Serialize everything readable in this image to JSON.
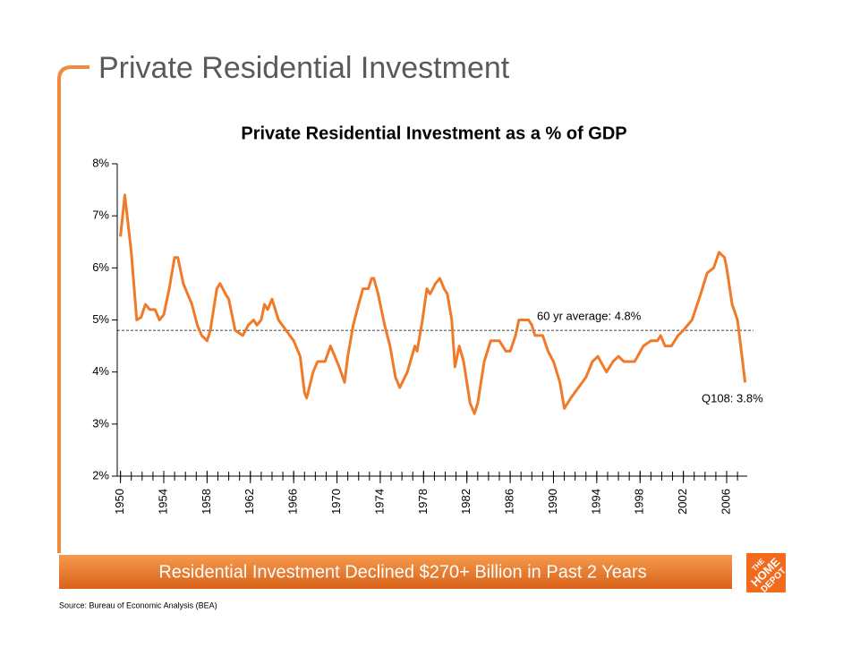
{
  "slide": {
    "title": "Private Residential Investment",
    "banner": "Residential Investment Declined $270+ Billion in Past 2 Years",
    "source": "Source:  Bureau of Economic Analysis (BEA)",
    "logo": [
      "THE",
      "HOME",
      "DEPOT"
    ]
  },
  "chart_data": {
    "type": "line",
    "title": "Private Residential Investment as a % of GDP",
    "color": "#f07a28",
    "x": [
      1950.0,
      1950.4,
      1951.0,
      1951.5,
      1951.9,
      1952.3,
      1952.7,
      1953.2,
      1953.6,
      1954.0,
      1954.5,
      1955.0,
      1955.3,
      1955.8,
      1956.2,
      1956.6,
      1957.1,
      1957.5,
      1958.0,
      1958.3,
      1958.9,
      1959.2,
      1959.7,
      1960.0,
      1960.6,
      1961.3,
      1961.8,
      1962.3,
      1962.6,
      1963.0,
      1963.3,
      1963.6,
      1964.0,
      1964.6,
      1965.3,
      1966.0,
      1966.6,
      1967.0,
      1967.2,
      1967.8,
      1968.2,
      1968.9,
      1969.4,
      1970.2,
      1970.7,
      1971.0,
      1971.5,
      1972.0,
      1972.4,
      1972.9,
      1973.2,
      1973.4,
      1973.8,
      1974.4,
      1974.9,
      1975.4,
      1975.8,
      1976.5,
      1977.2,
      1977.4,
      1977.9,
      1978.3,
      1978.6,
      1979.1,
      1979.5,
      1979.9,
      1980.2,
      1980.6,
      1980.9,
      1981.3,
      1981.7,
      1982.3,
      1982.7,
      1983.0,
      1983.6,
      1984.2,
      1985.0,
      1985.6,
      1986.0,
      1986.5,
      1986.8,
      1987.7,
      1988.0,
      1988.3,
      1989.0,
      1989.5,
      1990.0,
      1990.6,
      1991.0,
      1991.6,
      1992.3,
      1993.0,
      1993.6,
      1994.1,
      1994.9,
      1995.5,
      1996.0,
      1996.5,
      1997.5,
      1998.3,
      1999.0,
      1999.6,
      1999.9,
      2000.3,
      2000.9,
      2001.5,
      2002.0,
      2002.8,
      2003.6,
      2004.2,
      2004.8,
      2005.3,
      2005.8,
      2006.0,
      2006.5,
      2007.0,
      2007.3,
      2007.7
    ],
    "values": [
      6.6,
      7.4,
      6.3,
      5.0,
      5.05,
      5.3,
      5.2,
      5.2,
      5.0,
      5.1,
      5.6,
      6.2,
      6.2,
      5.7,
      5.5,
      5.3,
      4.9,
      4.7,
      4.6,
      4.8,
      5.6,
      5.7,
      5.5,
      5.4,
      4.8,
      4.7,
      4.9,
      5.0,
      4.9,
      5.0,
      5.3,
      5.2,
      5.4,
      5.0,
      4.8,
      4.6,
      4.3,
      3.6,
      3.5,
      4.0,
      4.2,
      4.2,
      4.5,
      4.1,
      3.8,
      4.3,
      4.9,
      5.3,
      5.6,
      5.6,
      5.8,
      5.8,
      5.5,
      4.9,
      4.5,
      3.9,
      3.7,
      4.0,
      4.5,
      4.4,
      5.0,
      5.6,
      5.5,
      5.7,
      5.8,
      5.6,
      5.5,
      5.0,
      4.1,
      4.5,
      4.2,
      3.4,
      3.2,
      3.4,
      4.2,
      4.6,
      4.6,
      4.4,
      4.4,
      4.7,
      5.0,
      5.0,
      4.9,
      4.7,
      4.7,
      4.4,
      4.2,
      3.8,
      3.3,
      3.5,
      3.7,
      3.9,
      4.2,
      4.3,
      4.0,
      4.2,
      4.3,
      4.2,
      4.2,
      4.5,
      4.6,
      4.6,
      4.7,
      4.5,
      4.5,
      4.7,
      4.8,
      5.0,
      5.5,
      5.9,
      6.0,
      6.3,
      6.2,
      6.0,
      5.3,
      5.0,
      4.5,
      3.8
    ],
    "xlim": [
      1949.7,
      2007.9
    ],
    "xticks": [
      1950,
      1954,
      1958,
      1962,
      1966,
      1970,
      1974,
      1978,
      1982,
      1986,
      1990,
      1994,
      1998,
      2002,
      2006
    ],
    "xminorticks": [
      1950,
      1951,
      1952,
      1953,
      1954,
      1955,
      1956,
      1957,
      1958,
      1959,
      1960,
      1961,
      1962,
      1963,
      1964,
      1965,
      1966,
      1967,
      1968,
      1969,
      1970,
      1971,
      1972,
      1973,
      1974,
      1975,
      1976,
      1977,
      1978,
      1979,
      1980,
      1981,
      1982,
      1983,
      1984,
      1985,
      1986,
      1987,
      1988,
      1989,
      1990,
      1991,
      1992,
      1993,
      1994,
      1995,
      1996,
      1997,
      1998,
      1999,
      2000,
      2001,
      2002,
      2003,
      2004,
      2005,
      2006,
      2007
    ],
    "ylim": [
      2,
      8
    ],
    "yticks": [
      {
        "value": 2,
        "label": "2%"
      },
      {
        "value": 3,
        "label": "3%"
      },
      {
        "value": 4,
        "label": "4%"
      },
      {
        "value": 5,
        "label": "5%"
      },
      {
        "value": 6,
        "label": "6%"
      },
      {
        "value": 7,
        "label": "7%"
      },
      {
        "value": 8,
        "label": "8%"
      }
    ],
    "average": 4.8,
    "average_label": "60 yr average: 4.8%",
    "last_label": "Q108: 3.8%"
  }
}
